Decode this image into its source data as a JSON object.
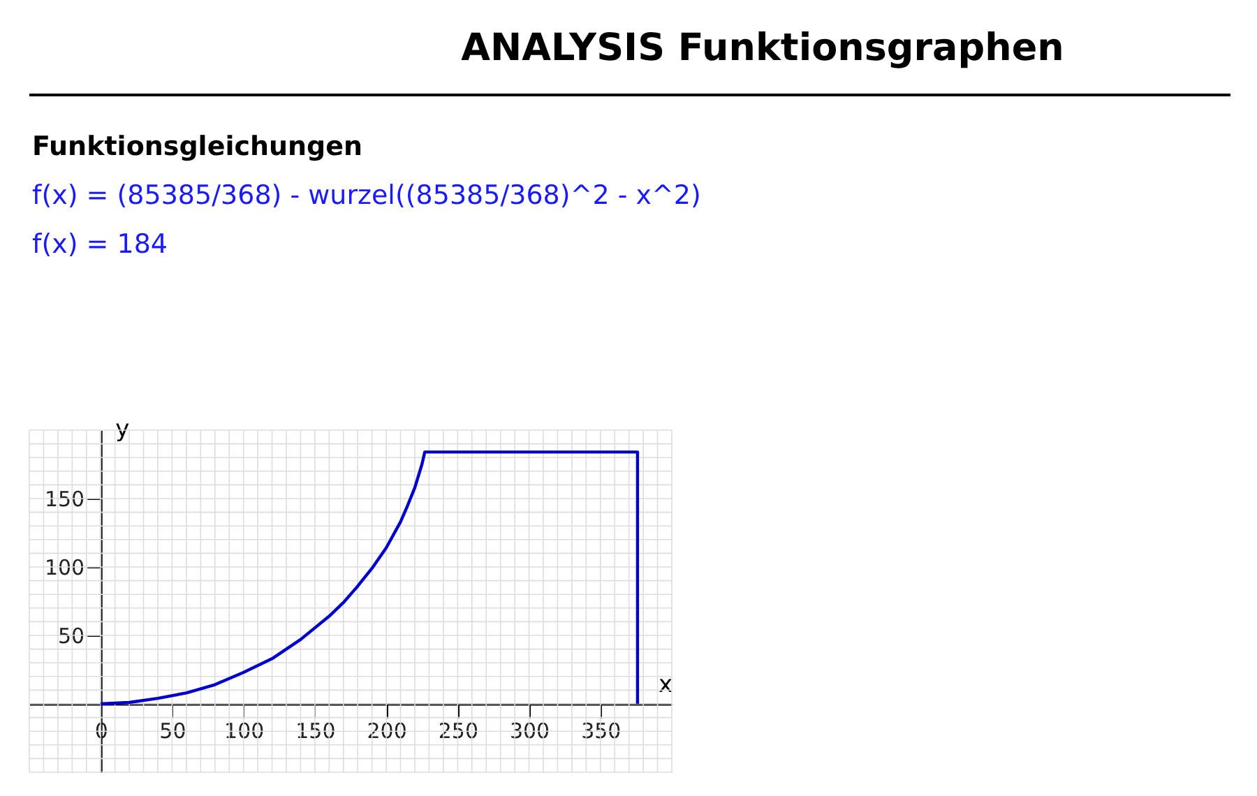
{
  "chart_data": {
    "type": "line",
    "title": "ANALYSIS  Funktionsgraphen",
    "annotations": [
      "Funktionsgleichungen",
      "f(x) = (85385/368) - wurzel((85385/368)^2 - x^2)",
      "f(x) = 184"
    ],
    "xlabel": "x",
    "ylabel": "y",
    "series": [
      {
        "color": "#0000cc",
        "x": [
          0,
          20,
          40,
          60,
          80,
          100,
          120,
          140,
          160,
          170,
          180,
          190,
          200,
          210,
          215,
          220,
          225,
          227,
          376,
          376
        ],
        "values": [
          0,
          1,
          4,
          8,
          14,
          23,
          33,
          47,
          64,
          74,
          86,
          99,
          114,
          133,
          145,
          158,
          175,
          184,
          184,
          0
        ]
      }
    ],
    "xlim": [
      -50,
      400
    ],
    "ylim": [
      -50,
      200
    ],
    "xticks": [
      0,
      50,
      100,
      150,
      200,
      250,
      300,
      350
    ],
    "yticks": [
      50,
      100,
      150
    ],
    "grid": true,
    "line_style": "solid"
  }
}
